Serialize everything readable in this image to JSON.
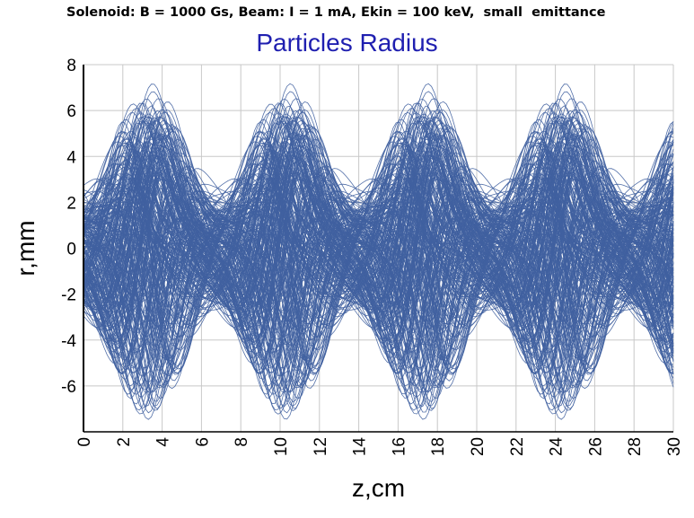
{
  "header": {
    "caption_main": "Solenoid: B = 1000 Gs, Beam: I = 1 mA, Ekin = 100 keV,",
    "caption_small": "small",
    "caption_end": "emittance"
  },
  "chart_data": {
    "type": "line",
    "title": "Particles Radius",
    "xlabel": "z,cm",
    "ylabel": "r,mm",
    "xlim": [
      0,
      30
    ],
    "ylim": [
      -8,
      8
    ],
    "xticks": [
      0,
      2,
      4,
      6,
      8,
      10,
      12,
      14,
      16,
      18,
      20,
      22,
      24,
      26,
      28,
      30
    ],
    "yticks": [
      -6,
      -4,
      -2,
      0,
      2,
      4,
      6,
      8
    ],
    "grid": true,
    "line_color": "#4060a0",
    "trace_period_cm": 7.0,
    "trace_count": 260,
    "envelope": {
      "max_radius_mm": 7.8,
      "max_at_z_cm": [
        3.3,
        10.3,
        17.3,
        24.3
      ],
      "waist_radius_mm": 3.2,
      "waist_at_z_cm": [
        6.8,
        13.8,
        20.8,
        27.8
      ]
    }
  }
}
